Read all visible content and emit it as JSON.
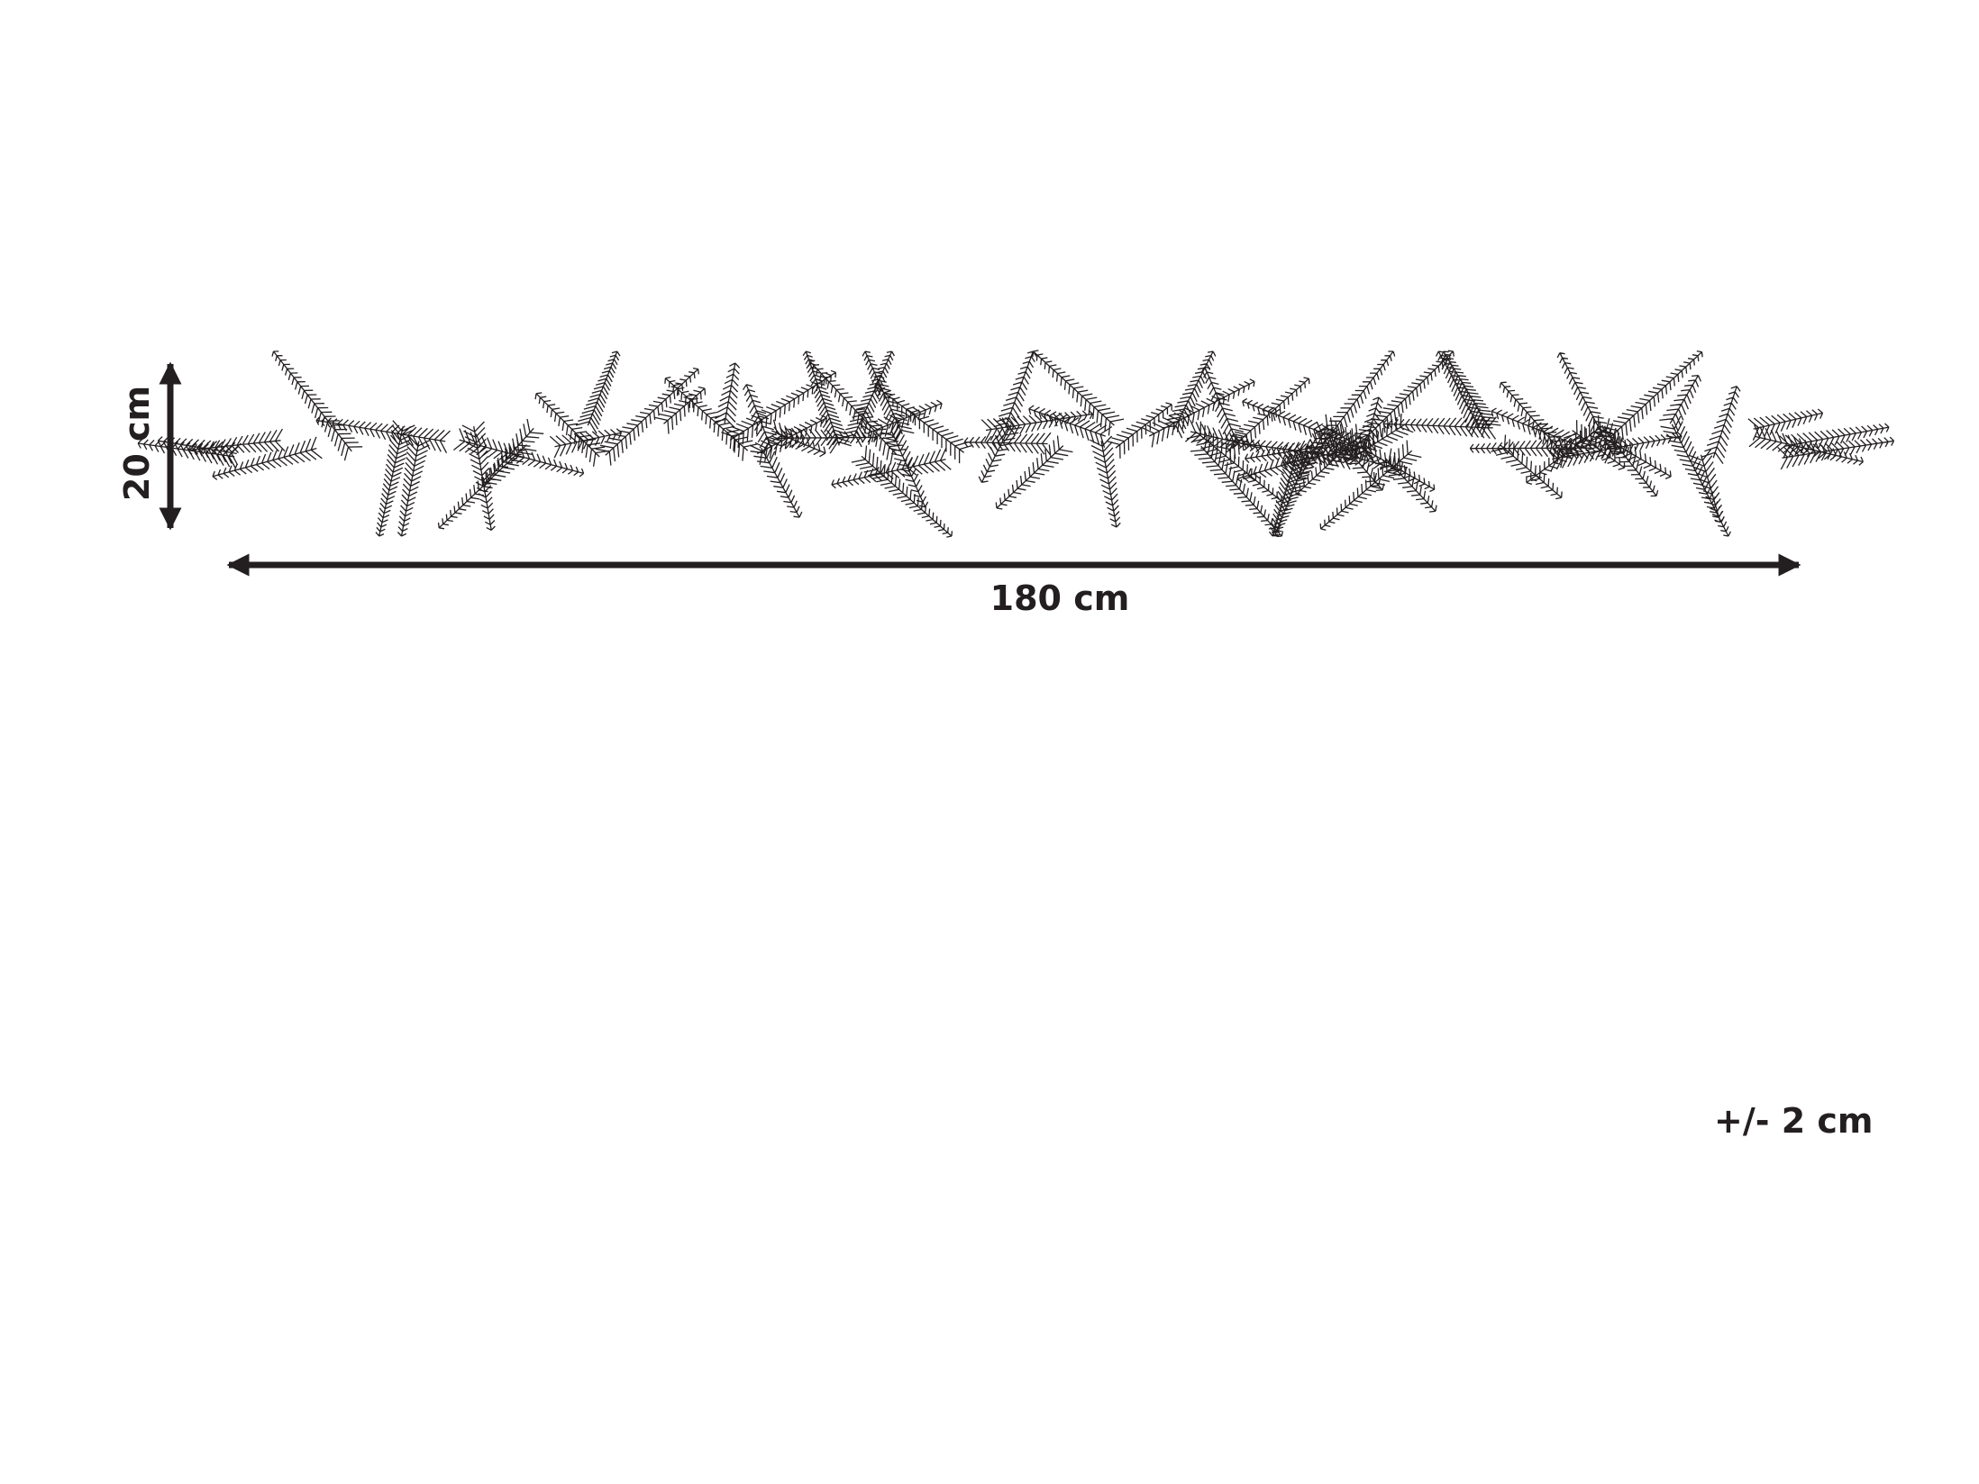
{
  "dimensions": {
    "width_label": "180 cm",
    "height_label": "20 cm",
    "tolerance_label": "+/- 2 cm"
  },
  "illustration": {
    "subject": "pine-garland-icon",
    "line_color": "#231f20"
  }
}
